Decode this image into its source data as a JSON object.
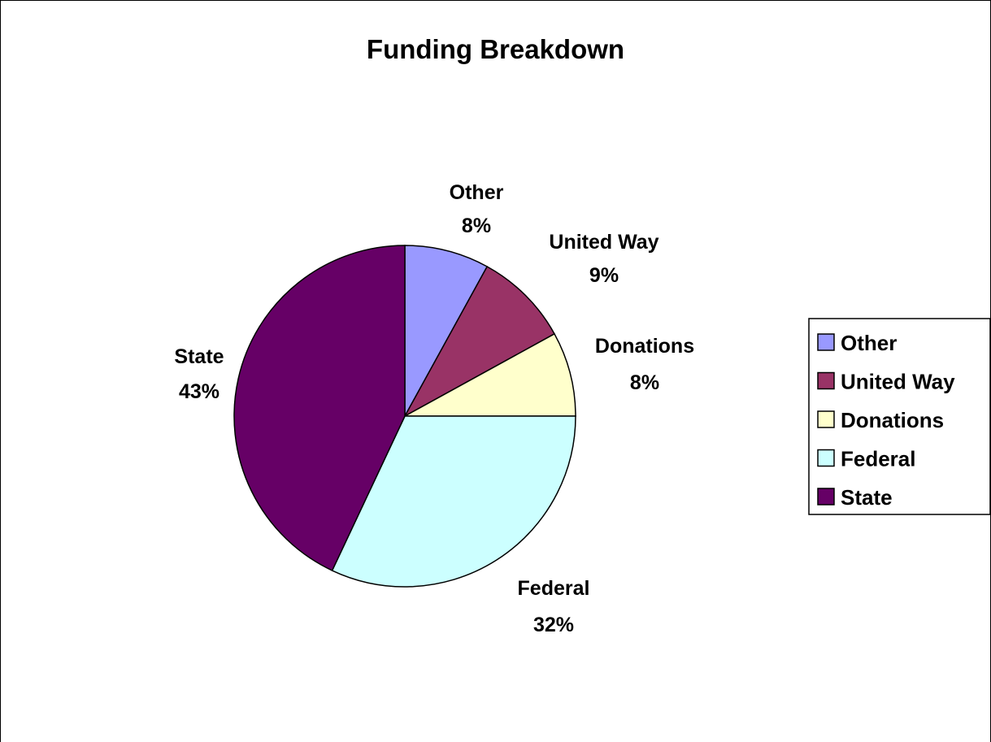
{
  "chart_data": {
    "type": "pie",
    "title": "Funding Breakdown",
    "slices": [
      {
        "label": "Other",
        "value": 8,
        "display": "8%",
        "color": "#9999FF"
      },
      {
        "label": "United Way",
        "value": 9,
        "display": "9%",
        "color": "#993366"
      },
      {
        "label": "Donations",
        "value": 8,
        "display": "8%",
        "color": "#FFFFCC"
      },
      {
        "label": "Federal",
        "value": 32,
        "display": "32%",
        "color": "#CCFFFF"
      },
      {
        "label": "State",
        "value": 43,
        "display": "43%",
        "color": "#660066"
      }
    ],
    "legend": {
      "placement": "right",
      "entries": [
        "Other",
        "United Way",
        "Donations",
        "Federal",
        "State"
      ]
    },
    "start_angle_deg": 0,
    "direction": "clockwise"
  }
}
